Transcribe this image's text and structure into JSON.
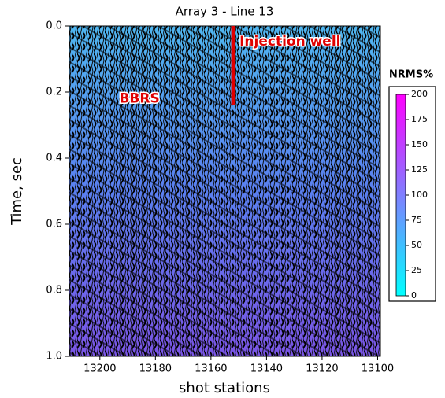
{
  "chart_data": {
    "type": "image",
    "title": "Array 3 - Line 13",
    "x_label": "shot stations",
    "y_label": "Time, sec",
    "xlim": [
      13211,
      13099
    ],
    "xticks": [
      13200,
      13180,
      13160,
      13140,
      13120,
      13100
    ],
    "ylim": [
      0,
      1
    ],
    "y_inverted": true,
    "yticks": [
      {
        "value": 0,
        "label": "0.0"
      },
      0.2,
      0.4,
      0.6,
      0.8,
      {
        "value": 1,
        "label": "1.0"
      }
    ],
    "colormap": [
      "#00ffff",
      "#ff00ff"
    ],
    "colorbar": {
      "title": "NRMS%",
      "clim": [
        0,
        200
      ],
      "ticks": [
        0,
        25,
        50,
        75,
        100,
        125,
        150,
        175,
        200
      ]
    },
    "annotations": [
      {
        "text": "Injection well",
        "x": 13152,
        "y": [
          0,
          0.24
        ],
        "color": "#e00000"
      },
      {
        "text": "BBRS",
        "x": 13193,
        "y": 0.22,
        "color": "#e00000"
      }
    ]
  }
}
